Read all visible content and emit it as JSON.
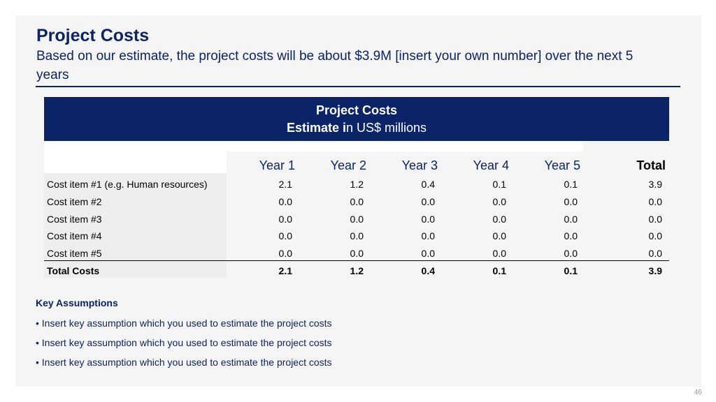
{
  "header": {
    "title": "Project Costs",
    "subtitle": "Based on our estimate, the project costs will be about $3.9M [insert your own number] over the next 5 years"
  },
  "banner": {
    "line1": "Project Costs",
    "line2_bold": "Estimate i",
    "line2_rest": "n US$ millions"
  },
  "table": {
    "columns": [
      "Year 1",
      "Year 2",
      "Year 3",
      "Year 4",
      "Year 5",
      "Total"
    ],
    "rows": [
      {
        "label": "Cost item #1 (e.g. Human resources)",
        "values": [
          "2.1",
          "1.2",
          "0.4",
          "0.1",
          "0.1",
          "3.9"
        ]
      },
      {
        "label": "Cost item #2",
        "values": [
          "0.0",
          "0.0",
          "0.0",
          "0.0",
          "0.0",
          "0.0"
        ]
      },
      {
        "label": "Cost item #3",
        "values": [
          "0.0",
          "0.0",
          "0.0",
          "0.0",
          "0.0",
          "0.0"
        ]
      },
      {
        "label": "Cost item #4",
        "values": [
          "0.0",
          "0.0",
          "0.0",
          "0.0",
          "0.0",
          "0.0"
        ]
      },
      {
        "label": "Cost item #5",
        "values": [
          "0.0",
          "0.0",
          "0.0",
          "0.0",
          "0.0",
          "0.0"
        ]
      },
      {
        "label": "Total Costs",
        "values": [
          "2.1",
          "1.2",
          "0.4",
          "0.1",
          "0.1",
          "3.9"
        ]
      }
    ]
  },
  "key_assumptions": {
    "title": "Key Assumptions",
    "items": [
      "• Insert key assumption which you used to estimate the project costs",
      "• Insert key assumption which you used to estimate the project costs",
      "• Insert key assumption which you used to estimate the project costs"
    ]
  },
  "page_number": "46",
  "colors": {
    "brand_navy": "#0b2468"
  }
}
